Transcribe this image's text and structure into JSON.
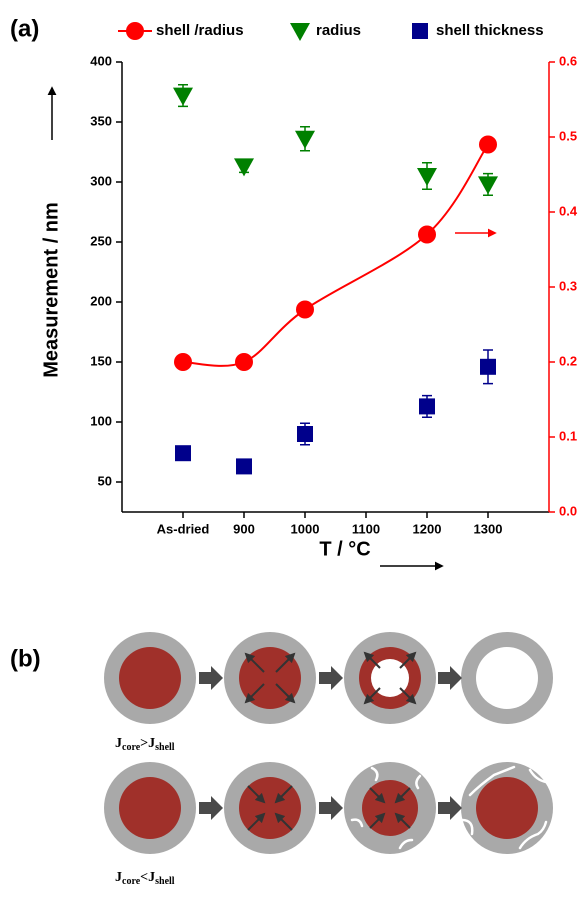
{
  "chart_data": {
    "type": "line",
    "panel_label": "(a)",
    "y_label": "Measurement / nm",
    "x_label": "T / °C",
    "categories": [
      "As-dried",
      "900",
      "1000",
      "1100",
      "1200",
      "1300"
    ],
    "ylim": [
      25,
      400
    ],
    "yticks": [
      50,
      100,
      150,
      200,
      250,
      300,
      350,
      400
    ],
    "y2lim": [
      0,
      0.6
    ],
    "y2ticks": [
      {
        "value": 0,
        "label": "0.0"
      },
      0.1,
      0.2,
      0.3,
      0.4,
      0.5,
      0.6
    ],
    "series": [
      {
        "name": "shell /radius",
        "color": "#ff0000",
        "marker": "circle",
        "line": true,
        "axis": "y2",
        "values": [
          0.2,
          0.2,
          0.27,
          null,
          0.37,
          0.49
        ]
      },
      {
        "name": "radius",
        "color": "#008000",
        "marker": "triangle-down",
        "values": [
          372,
          313,
          336,
          null,
          305,
          298
        ],
        "errors": [
          9,
          5,
          10,
          null,
          11,
          9
        ]
      },
      {
        "name": "shell thickness",
        "color": "#00008b",
        "marker": "square",
        "values": [
          74,
          63,
          90,
          null,
          113,
          146
        ],
        "errors": [
          3,
          2,
          9,
          null,
          9,
          14
        ]
      }
    ]
  },
  "diagram": {
    "panel_label": "(b)",
    "rows": [
      {
        "condition": [
          "J",
          "core",
          ">",
          "J",
          "shell"
        ]
      },
      {
        "condition": [
          "J",
          "core",
          "<",
          "J",
          "shell"
        ]
      }
    ]
  }
}
